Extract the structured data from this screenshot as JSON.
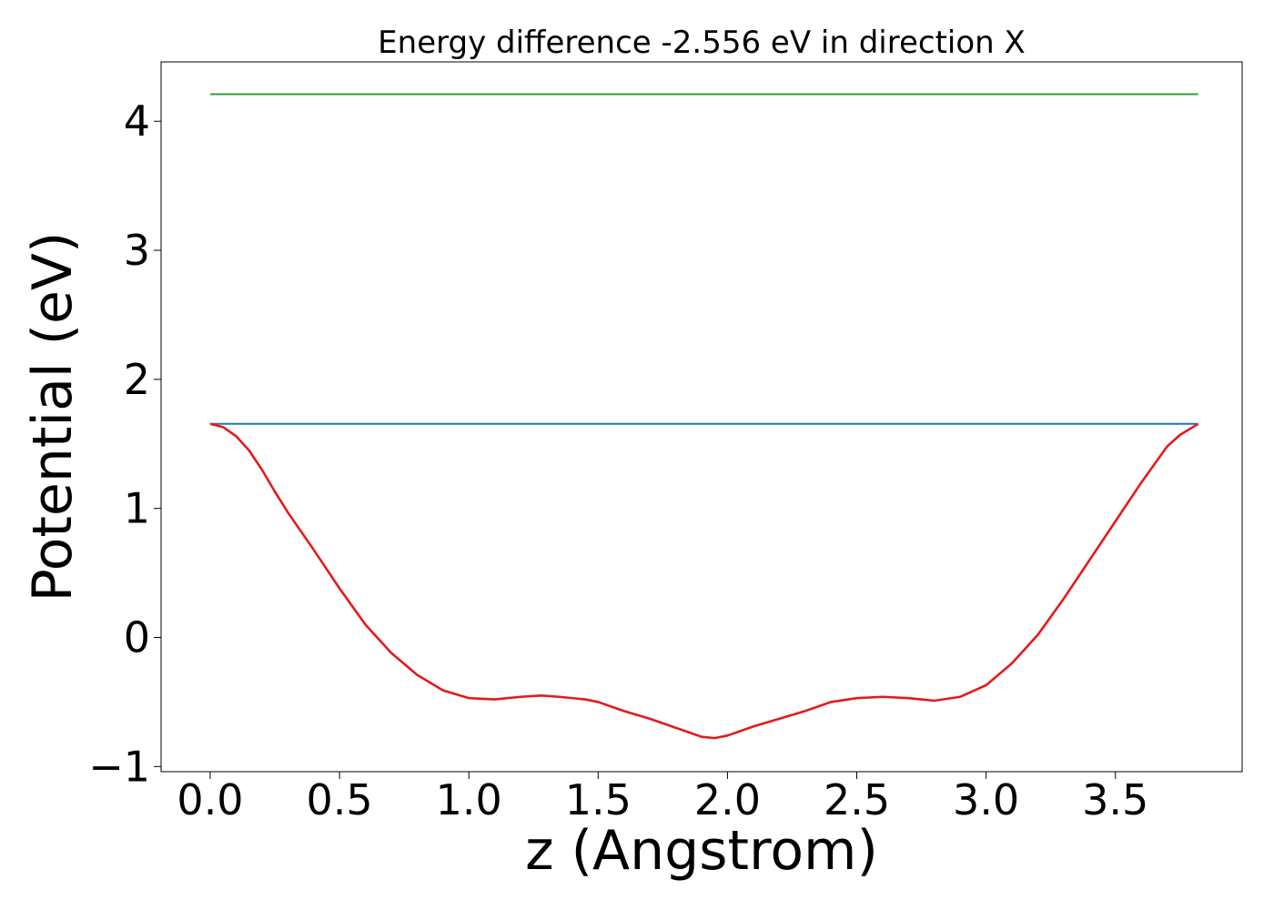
{
  "chart_data": {
    "type": "line",
    "title": "Energy difference -2.556 eV in direction X",
    "xlabel": "z (Angstrom)",
    "ylabel": "Potential (eV)",
    "xlim": [
      -0.19,
      3.99
    ],
    "ylim": [
      -1.04,
      4.46
    ],
    "xticks": [
      0.0,
      0.5,
      1.0,
      1.5,
      2.0,
      2.5,
      3.0,
      3.5
    ],
    "xtick_labels": [
      "0.0",
      "0.5",
      "1.0",
      "1.5",
      "2.0",
      "2.5",
      "3.0",
      "3.5"
    ],
    "yticks": [
      -1,
      0,
      1,
      2,
      3,
      4
    ],
    "ytick_labels": [
      "−1",
      "0",
      "1",
      "2",
      "3",
      "4"
    ],
    "grid": false,
    "series": [
      {
        "color": "#2ca02c",
        "x": [
          0.0,
          3.82
        ],
        "y": [
          4.21,
          4.21
        ]
      },
      {
        "color": "#1f77b4",
        "x": [
          0.0,
          3.82
        ],
        "y": [
          1.655,
          1.655
        ]
      },
      {
        "color": "#e31a1c",
        "x": [
          0.0,
          0.05,
          0.1,
          0.15,
          0.2,
          0.25,
          0.3,
          0.4,
          0.5,
          0.6,
          0.7,
          0.8,
          0.9,
          1.0,
          1.1,
          1.2,
          1.28,
          1.35,
          1.45,
          1.5,
          1.6,
          1.7,
          1.8,
          1.9,
          1.95,
          2.0,
          2.1,
          2.2,
          2.3,
          2.4,
          2.5,
          2.6,
          2.7,
          2.8,
          2.9,
          3.0,
          3.1,
          3.2,
          3.3,
          3.4,
          3.5,
          3.6,
          3.7,
          3.75,
          3.82
        ],
        "y": [
          1.655,
          1.63,
          1.56,
          1.45,
          1.3,
          1.13,
          0.97,
          0.68,
          0.38,
          0.1,
          -0.12,
          -0.29,
          -0.41,
          -0.47,
          -0.48,
          -0.46,
          -0.45,
          -0.46,
          -0.48,
          -0.5,
          -0.57,
          -0.63,
          -0.7,
          -0.77,
          -0.78,
          -0.76,
          -0.69,
          -0.63,
          -0.57,
          -0.5,
          -0.47,
          -0.46,
          -0.47,
          -0.49,
          -0.46,
          -0.37,
          -0.2,
          0.02,
          0.3,
          0.6,
          0.9,
          1.2,
          1.48,
          1.57,
          1.655
        ]
      }
    ]
  }
}
